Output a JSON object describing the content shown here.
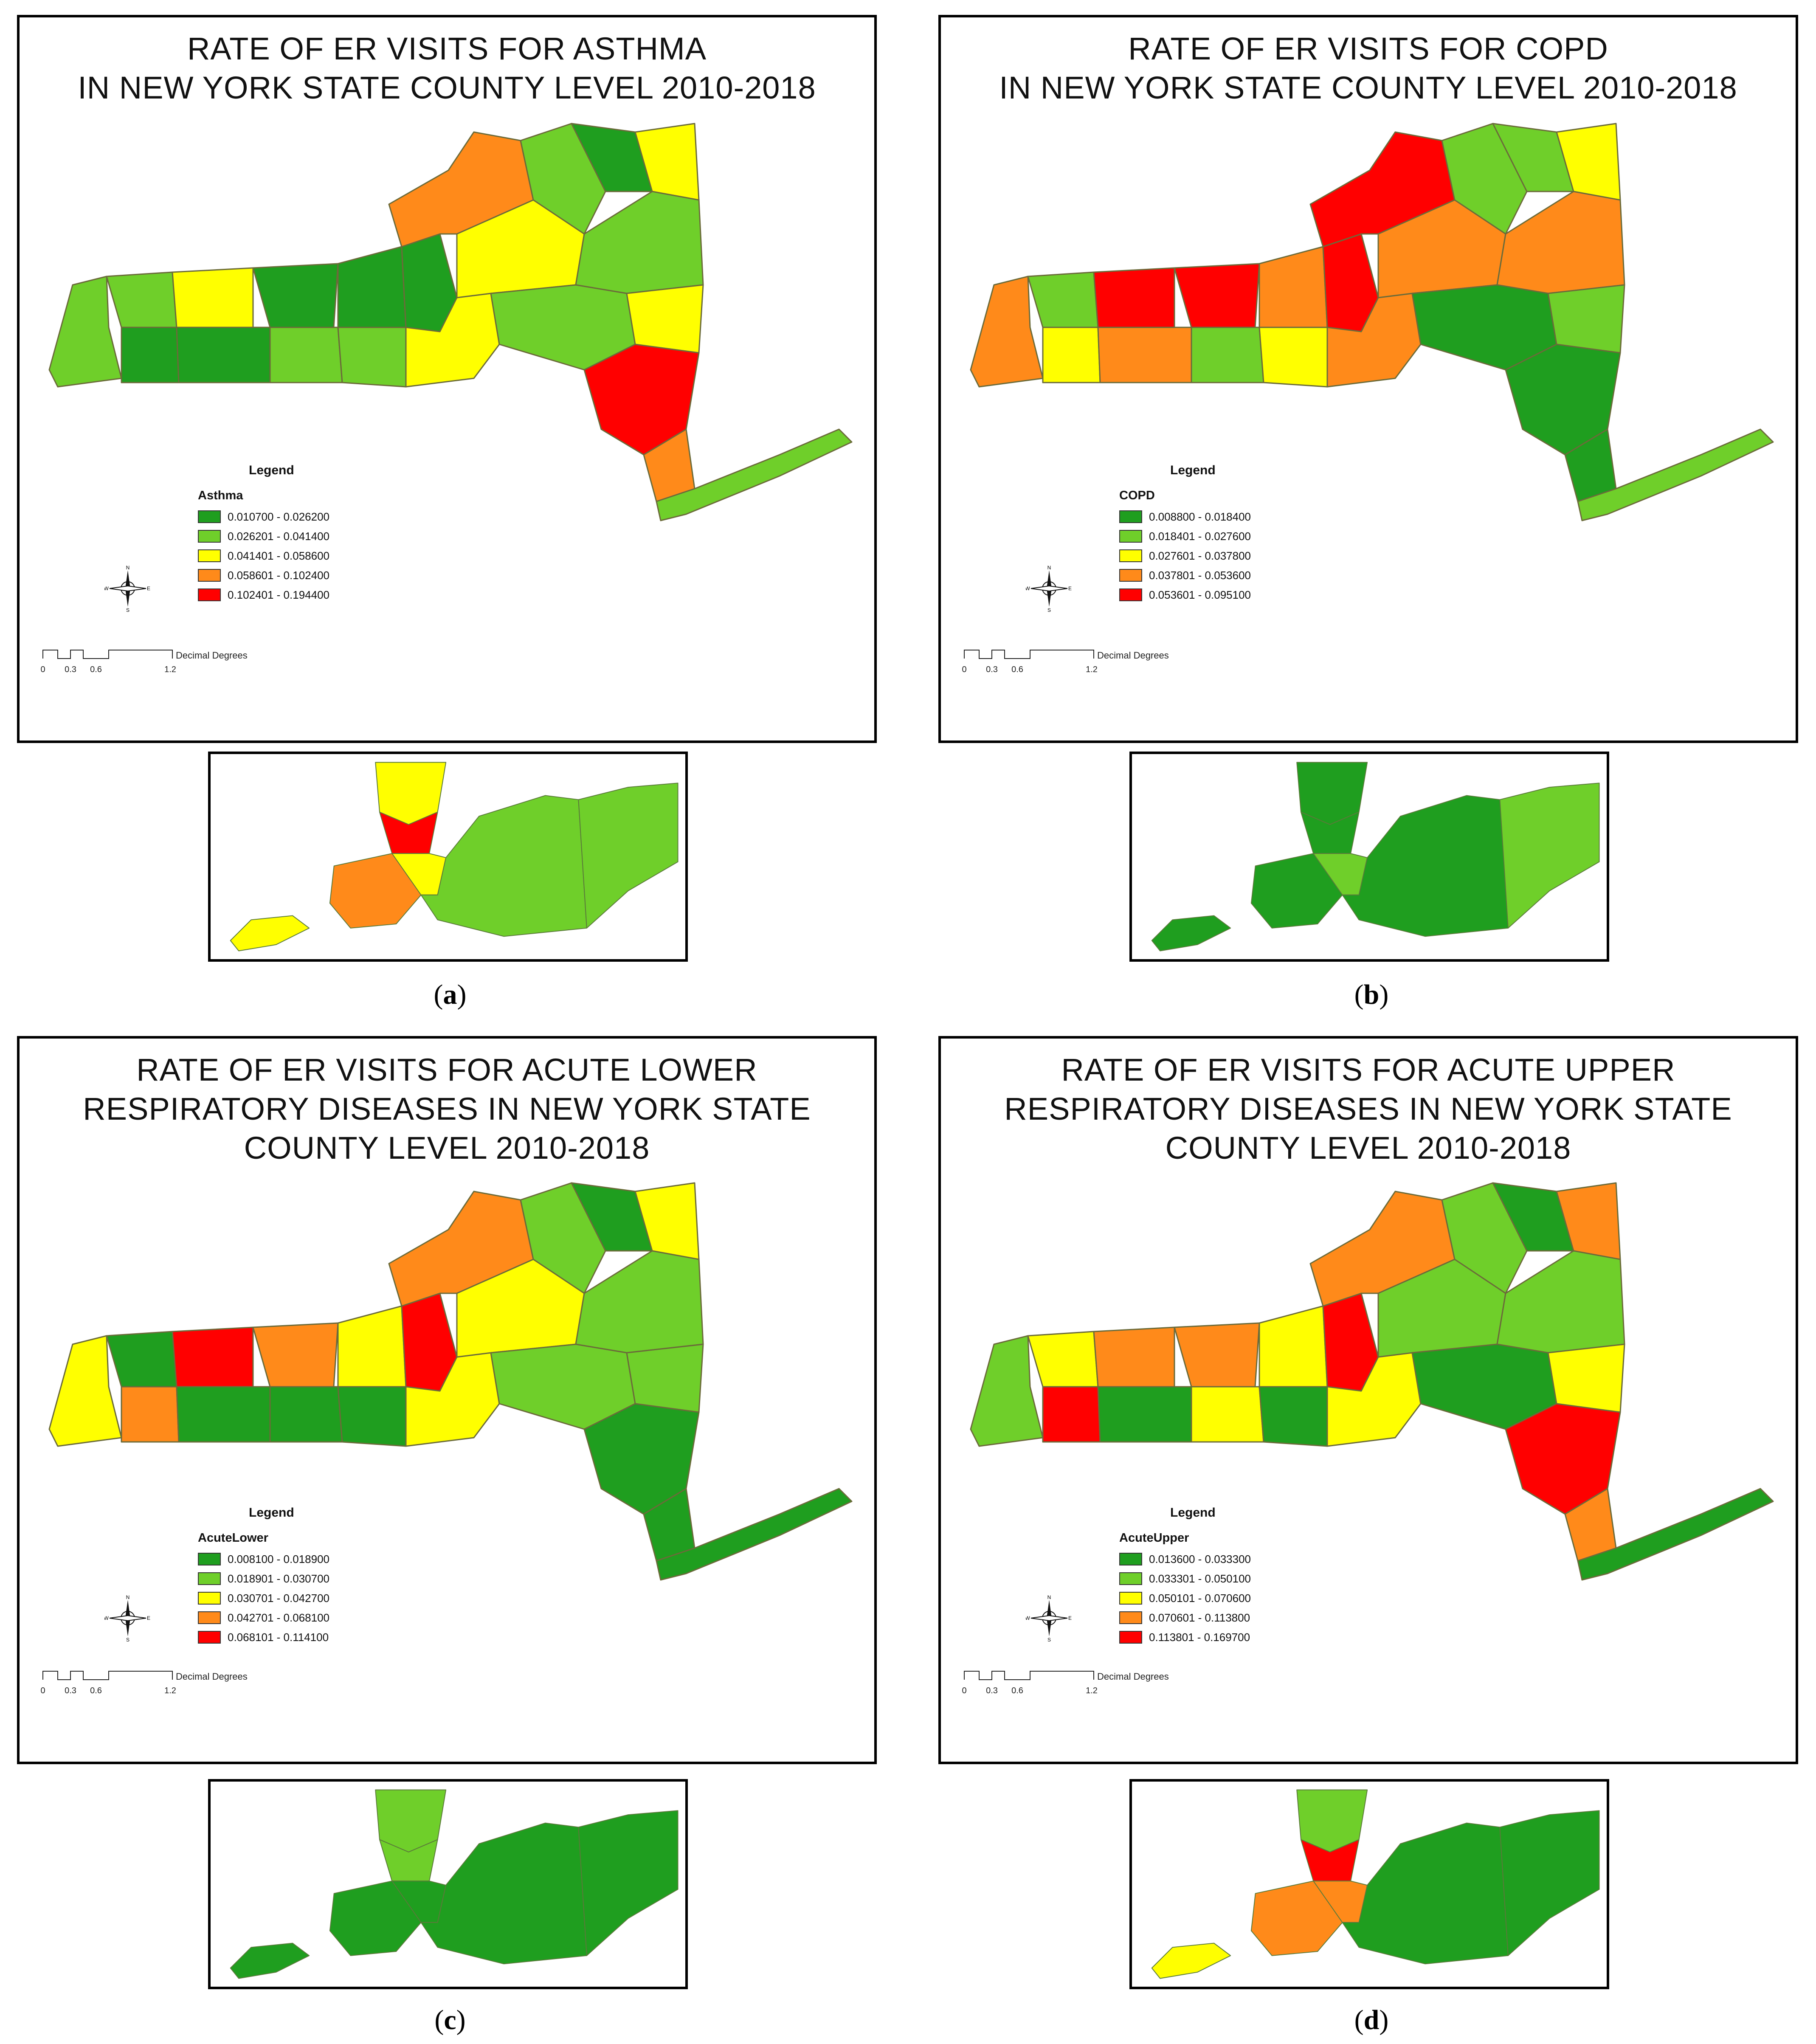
{
  "panels": [
    {
      "id": "a",
      "title": "RATE OF ER VISITS FOR ASTHMA\nIN NEW YORK STATE COUNTY LEVEL 2010-2018",
      "legend_heading": "Legend",
      "legend_field": "Asthma",
      "classes": [
        {
          "range": "0.010700 - 0.026200",
          "color": "#1f9e1f"
        },
        {
          "range": "0.026201 - 0.041400",
          "color": "#6fcf2a"
        },
        {
          "range": "0.041401 - 0.058600",
          "color": "#ffff00"
        },
        {
          "range": "0.058601 - 0.102400",
          "color": "#ff8a1a"
        },
        {
          "range": "0.102401 - 0.194400",
          "color": "#ff0000"
        }
      ],
      "scale_unit": "Decimal Degrees",
      "scale_ticks": [
        "0",
        "0.3",
        "0.6",
        "1.2"
      ],
      "caption_letter": "a"
    },
    {
      "id": "b",
      "title": "RATE OF ER VISITS FOR COPD\nIN NEW YORK STATE COUNTY LEVEL 2010-2018",
      "legend_heading": "Legend",
      "legend_field": "COPD",
      "classes": [
        {
          "range": "0.008800 - 0.018400",
          "color": "#1f9e1f"
        },
        {
          "range": "0.018401 - 0.027600",
          "color": "#6fcf2a"
        },
        {
          "range": "0.027601 - 0.037800",
          "color": "#ffff00"
        },
        {
          "range": "0.037801 - 0.053600",
          "color": "#ff8a1a"
        },
        {
          "range": "0.053601 - 0.095100",
          "color": "#ff0000"
        }
      ],
      "scale_unit": "Decimal Degrees",
      "scale_ticks": [
        "0",
        "0.3",
        "0.6",
        "1.2"
      ],
      "caption_letter": "b"
    },
    {
      "id": "c",
      "title": "RATE OF ER VISITS FOR ACUTE LOWER\nRESPIRATORY DISEASES IN NEW YORK STATE\nCOUNTY LEVEL 2010-2018",
      "legend_heading": "Legend",
      "legend_field": "AcuteLower",
      "classes": [
        {
          "range": "0.008100 - 0.018900",
          "color": "#1f9e1f"
        },
        {
          "range": "0.018901 - 0.030700",
          "color": "#6fcf2a"
        },
        {
          "range": "0.030701 - 0.042700",
          "color": "#ffff00"
        },
        {
          "range": "0.042701 - 0.068100",
          "color": "#ff8a1a"
        },
        {
          "range": "0.068101 - 0.114100",
          "color": "#ff0000"
        }
      ],
      "scale_unit": "Decimal Degrees",
      "scale_ticks": [
        "0",
        "0.3",
        "0.6",
        "1.2"
      ],
      "caption_letter": "c"
    },
    {
      "id": "d",
      "title": "RATE OF ER VISITS FOR ACUTE UPPER\nRESPIRATORY DISEASES IN NEW YORK STATE\nCOUNTY LEVEL 2010-2018",
      "legend_heading": "Legend",
      "legend_field": "AcuteUpper",
      "classes": [
        {
          "range": "0.013600 - 0.033300",
          "color": "#1f9e1f"
        },
        {
          "range": "0.033301 - 0.050100",
          "color": "#6fcf2a"
        },
        {
          "range": "0.050101 - 0.070600",
          "color": "#ffff00"
        },
        {
          "range": "0.070601 - 0.113800",
          "color": "#ff8a1a"
        },
        {
          "range": "0.113801 - 0.169700",
          "color": "#ff0000"
        }
      ],
      "scale_unit": "Decimal Degrees",
      "scale_ticks": [
        "0",
        "0.3",
        "0.6",
        "1.2"
      ],
      "caption_letter": "d"
    }
  ],
  "compass_labels": [
    "N",
    "E",
    "S",
    "W"
  ],
  "map_fills": {
    "a": [
      "#6fcf2a",
      "#6fcf2a",
      "#1f9e1f",
      "#ffff00",
      "#1f9e1f",
      "#1f9e1f",
      "#6fcf2a",
      "#1f9e1f",
      "#6fcf2a",
      "#1f9e1f",
      "#ffff00",
      "#ff8a1a",
      "#6fcf2a",
      "#ffff00",
      "#1f9e1f",
      "#ffff00",
      "#6fcf2a",
      "#6fcf2a",
      "#ffff00",
      "#ff0000",
      "#ff8a1a",
      "#6fcf2a"
    ],
    "b": [
      "#ff8a1a",
      "#6fcf2a",
      "#ffff00",
      "#ff0000",
      "#ff8a1a",
      "#ff0000",
      "#6fcf2a",
      "#ff8a1a",
      "#ffff00",
      "#ff0000",
      "#ff8a1a",
      "#ff0000",
      "#6fcf2a",
      "#ff8a1a",
      "#6fcf2a",
      "#ffff00",
      "#ff8a1a",
      "#1f9e1f",
      "#6fcf2a",
      "#1f9e1f",
      "#1f9e1f",
      "#6fcf2a"
    ],
    "c": [
      "#ffff00",
      "#1f9e1f",
      "#ff8a1a",
      "#ff0000",
      "#1f9e1f",
      "#ff8a1a",
      "#1f9e1f",
      "#ffff00",
      "#1f9e1f",
      "#ff0000",
      "#ffff00",
      "#ff8a1a",
      "#6fcf2a",
      "#ffff00",
      "#1f9e1f",
      "#ffff00",
      "#6fcf2a",
      "#6fcf2a",
      "#6fcf2a",
      "#1f9e1f",
      "#1f9e1f",
      "#1f9e1f"
    ],
    "d": [
      "#6fcf2a",
      "#ffff00",
      "#ff0000",
      "#ff8a1a",
      "#1f9e1f",
      "#ff8a1a",
      "#ffff00",
      "#ffff00",
      "#1f9e1f",
      "#ff0000",
      "#ffff00",
      "#ff8a1a",
      "#6fcf2a",
      "#6fcf2a",
      "#1f9e1f",
      "#ff8a1a",
      "#6fcf2a",
      "#1f9e1f",
      "#ffff00",
      "#ff0000",
      "#ff8a1a",
      "#1f9e1f"
    ]
  },
  "inset_fills": {
    "a": [
      "#ffff00",
      "#ff0000",
      "#ff8a1a",
      "#ffff00",
      "#ffff00",
      "#6fcf2a",
      "#6fcf2a"
    ],
    "b": [
      "#1f9e1f",
      "#1f9e1f",
      "#1f9e1f",
      "#6fcf2a",
      "#1f9e1f",
      "#1f9e1f",
      "#6fcf2a"
    ],
    "c": [
      "#6fcf2a",
      "#6fcf2a",
      "#1f9e1f",
      "#1f9e1f",
      "#1f9e1f",
      "#1f9e1f",
      "#1f9e1f"
    ],
    "d": [
      "#6fcf2a",
      "#ff0000",
      "#ff8a1a",
      "#ff8a1a",
      "#ffff00",
      "#1f9e1f",
      "#1f9e1f"
    ]
  }
}
